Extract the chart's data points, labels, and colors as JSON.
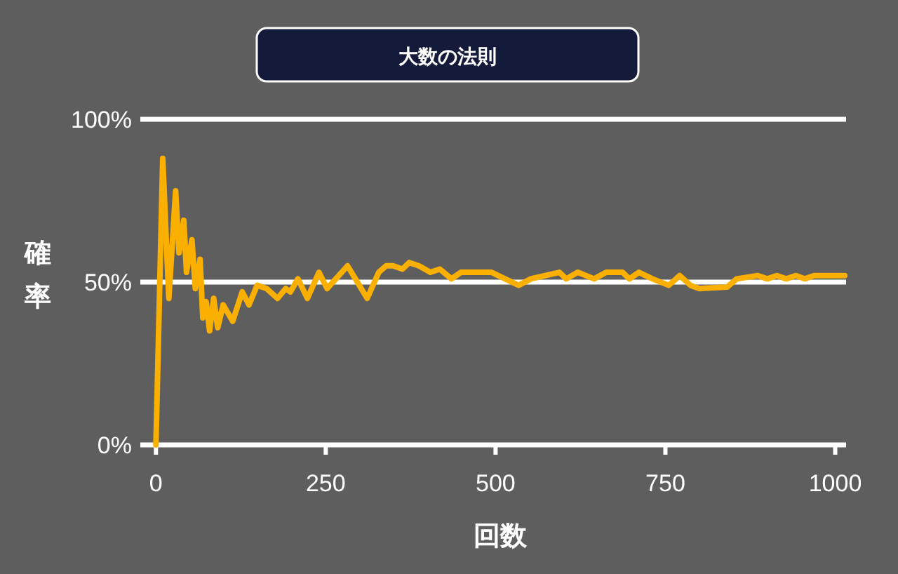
{
  "chart_data": {
    "type": "line",
    "title": "大数の法則",
    "xlabel": "回数",
    "ylabel": "確率",
    "x": [
      0,
      10,
      19,
      29,
      34,
      41,
      45,
      53,
      58,
      65,
      69,
      74,
      79,
      85,
      91,
      99,
      113,
      127,
      137,
      149,
      163,
      179,
      191,
      198,
      209,
      223,
      240,
      252,
      282,
      311,
      328,
      339,
      349,
      363,
      373,
      387,
      404,
      418,
      435,
      449,
      494,
      514,
      534,
      552,
      594,
      604,
      621,
      645,
      663,
      687,
      697,
      711,
      731,
      755,
      771,
      787,
      800,
      841,
      855,
      886,
      900,
      914,
      928,
      942,
      955,
      969,
      983,
      1014
    ],
    "values": [
      0,
      88,
      45,
      78,
      59,
      69,
      53,
      63,
      48,
      57,
      39,
      44,
      35,
      45,
      36,
      43,
      38,
      47,
      43,
      49,
      48,
      45,
      48,
      47,
      51,
      45,
      53,
      48,
      55,
      45,
      53,
      55,
      55,
      54,
      56,
      55,
      53,
      54,
      51,
      53,
      53,
      51,
      49,
      51,
      53,
      51,
      53,
      51,
      53,
      53,
      51,
      53,
      51,
      49,
      52,
      49,
      48,
      48.5,
      51,
      52,
      51,
      52,
      51,
      52,
      51,
      52,
      52,
      52
    ],
    "color": "#fbb000",
    "xlim": [
      -23,
      1016
    ],
    "ylim": [
      0,
      100
    ],
    "xticks": [
      0,
      250,
      500,
      750,
      1000
    ],
    "yticks": [
      {
        "value": 0,
        "label": "0%"
      },
      {
        "value": 50,
        "label": "50%"
      },
      {
        "value": 100,
        "label": "100%"
      }
    ],
    "grid": "y"
  }
}
